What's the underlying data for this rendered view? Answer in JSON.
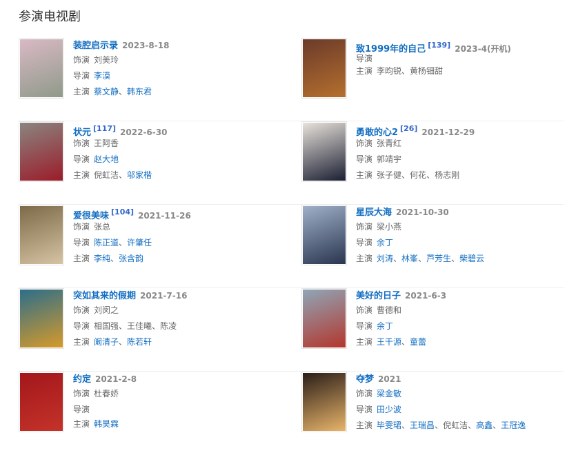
{
  "heading": "参演电视剧",
  "labels": {
    "role": "饰演",
    "director": "导演",
    "cast": "主演"
  },
  "items": [
    {
      "title": "装腔启示录",
      "ref": "",
      "date": "2023-8-18",
      "poster_colors": [
        "#d9b9c4",
        "#8f9a8a"
      ],
      "role": [
        {
          "n": "刘美玲",
          "l": false
        }
      ],
      "director": [
        {
          "n": "李漠",
          "l": true
        }
      ],
      "cast": [
        {
          "n": "蔡文静",
          "l": true
        },
        {
          "n": "韩东君",
          "l": true
        }
      ]
    },
    {
      "title": "致1999年的自己",
      "ref": "[139]",
      "date": "2023-4(开机)",
      "poster_colors": [
        "#6b3a2a",
        "#b5702e"
      ],
      "role": null,
      "director": [],
      "cast": [
        {
          "n": "李昀锐",
          "l": false
        },
        {
          "n": "黄杨钿甜",
          "l": false
        }
      ]
    },
    {
      "title": "状元",
      "ref": "[117]",
      "date": "2022-6-30",
      "poster_colors": [
        "#8a8580",
        "#9b1c2a"
      ],
      "role": [
        {
          "n": "王阿香",
          "l": false
        }
      ],
      "director": [
        {
          "n": "赵大地",
          "l": true
        }
      ],
      "cast": [
        {
          "n": "倪虹洁",
          "l": false
        },
        {
          "n": "邬家楷",
          "l": true
        }
      ]
    },
    {
      "title": "勇敢的心2",
      "ref": "[26]",
      "date": "2021-12-29",
      "poster_colors": [
        "#e8e2da",
        "#1b1f33"
      ],
      "role": [
        {
          "n": "张青红",
          "l": false
        }
      ],
      "director": [
        {
          "n": "郭靖宇",
          "l": false
        }
      ],
      "cast": [
        {
          "n": "张子健",
          "l": false
        },
        {
          "n": "何花",
          "l": false
        },
        {
          "n": "杨志刚",
          "l": false
        }
      ]
    },
    {
      "title": "爱很美味",
      "ref": "[104]",
      "date": "2021-11-26",
      "poster_colors": [
        "#7c6a48",
        "#d6c3a3"
      ],
      "role": [
        {
          "n": "张总",
          "l": false
        }
      ],
      "director": [
        {
          "n": "陈正道",
          "l": true
        },
        {
          "n": "许肇任",
          "l": true
        }
      ],
      "cast": [
        {
          "n": "李纯",
          "l": true
        },
        {
          "n": "张含韵",
          "l": true
        }
      ]
    },
    {
      "title": "星辰大海",
      "ref": "",
      "date": "2021-10-30",
      "poster_colors": [
        "#9fb0c8",
        "#2a3550"
      ],
      "role": [
        {
          "n": "梁小燕",
          "l": false
        }
      ],
      "director": [
        {
          "n": "余丁",
          "l": true
        }
      ],
      "cast": [
        {
          "n": "刘涛",
          "l": true
        },
        {
          "n": "林峯",
          "l": true
        },
        {
          "n": "芦芳生",
          "l": true
        },
        {
          "n": "柴碧云",
          "l": true
        }
      ]
    },
    {
      "title": "突如其来的假期",
      "ref": "",
      "date": "2021-7-16",
      "poster_colors": [
        "#2c6e8a",
        "#d69a2a"
      ],
      "role": [
        {
          "n": "刘闵之",
          "l": false
        }
      ],
      "director": [
        {
          "n": "相国强",
          "l": false
        },
        {
          "n": "王佳曦",
          "l": false
        },
        {
          "n": "陈凌",
          "l": false
        }
      ],
      "cast": [
        {
          "n": "阚清子",
          "l": true
        },
        {
          "n": "陈若轩",
          "l": true
        }
      ]
    },
    {
      "title": "美好的日子",
      "ref": "",
      "date": "2021-6-3",
      "poster_colors": [
        "#8fa6b8",
        "#b3362c"
      ],
      "role": [
        {
          "n": "曹德和",
          "l": false
        }
      ],
      "director": [
        {
          "n": "余丁",
          "l": true
        }
      ],
      "cast": [
        {
          "n": "王千源",
          "l": true
        },
        {
          "n": "童蕾",
          "l": true
        }
      ]
    },
    {
      "title": "约定",
      "ref": "",
      "date": "2021-2-8",
      "poster_colors": [
        "#a3171b",
        "#c4332a"
      ],
      "role": [
        {
          "n": "杜春娇",
          "l": false
        }
      ],
      "director": [],
      "cast": [
        {
          "n": "韩昊霖",
          "l": true
        }
      ]
    },
    {
      "title": "夺梦",
      "ref": "",
      "date": "2021",
      "poster_colors": [
        "#2a1e18",
        "#e8b46a"
      ],
      "role": [
        {
          "n": "梁金敏",
          "l": true
        }
      ],
      "director": [
        {
          "n": "田少波",
          "l": true
        }
      ],
      "cast": [
        {
          "n": "毕雯珺",
          "l": true
        },
        {
          "n": "王瑞昌",
          "l": true
        },
        {
          "n": "倪虹洁",
          "l": false
        },
        {
          "n": "高鑫",
          "l": true
        },
        {
          "n": "王冠逸",
          "l": true
        }
      ]
    }
  ]
}
